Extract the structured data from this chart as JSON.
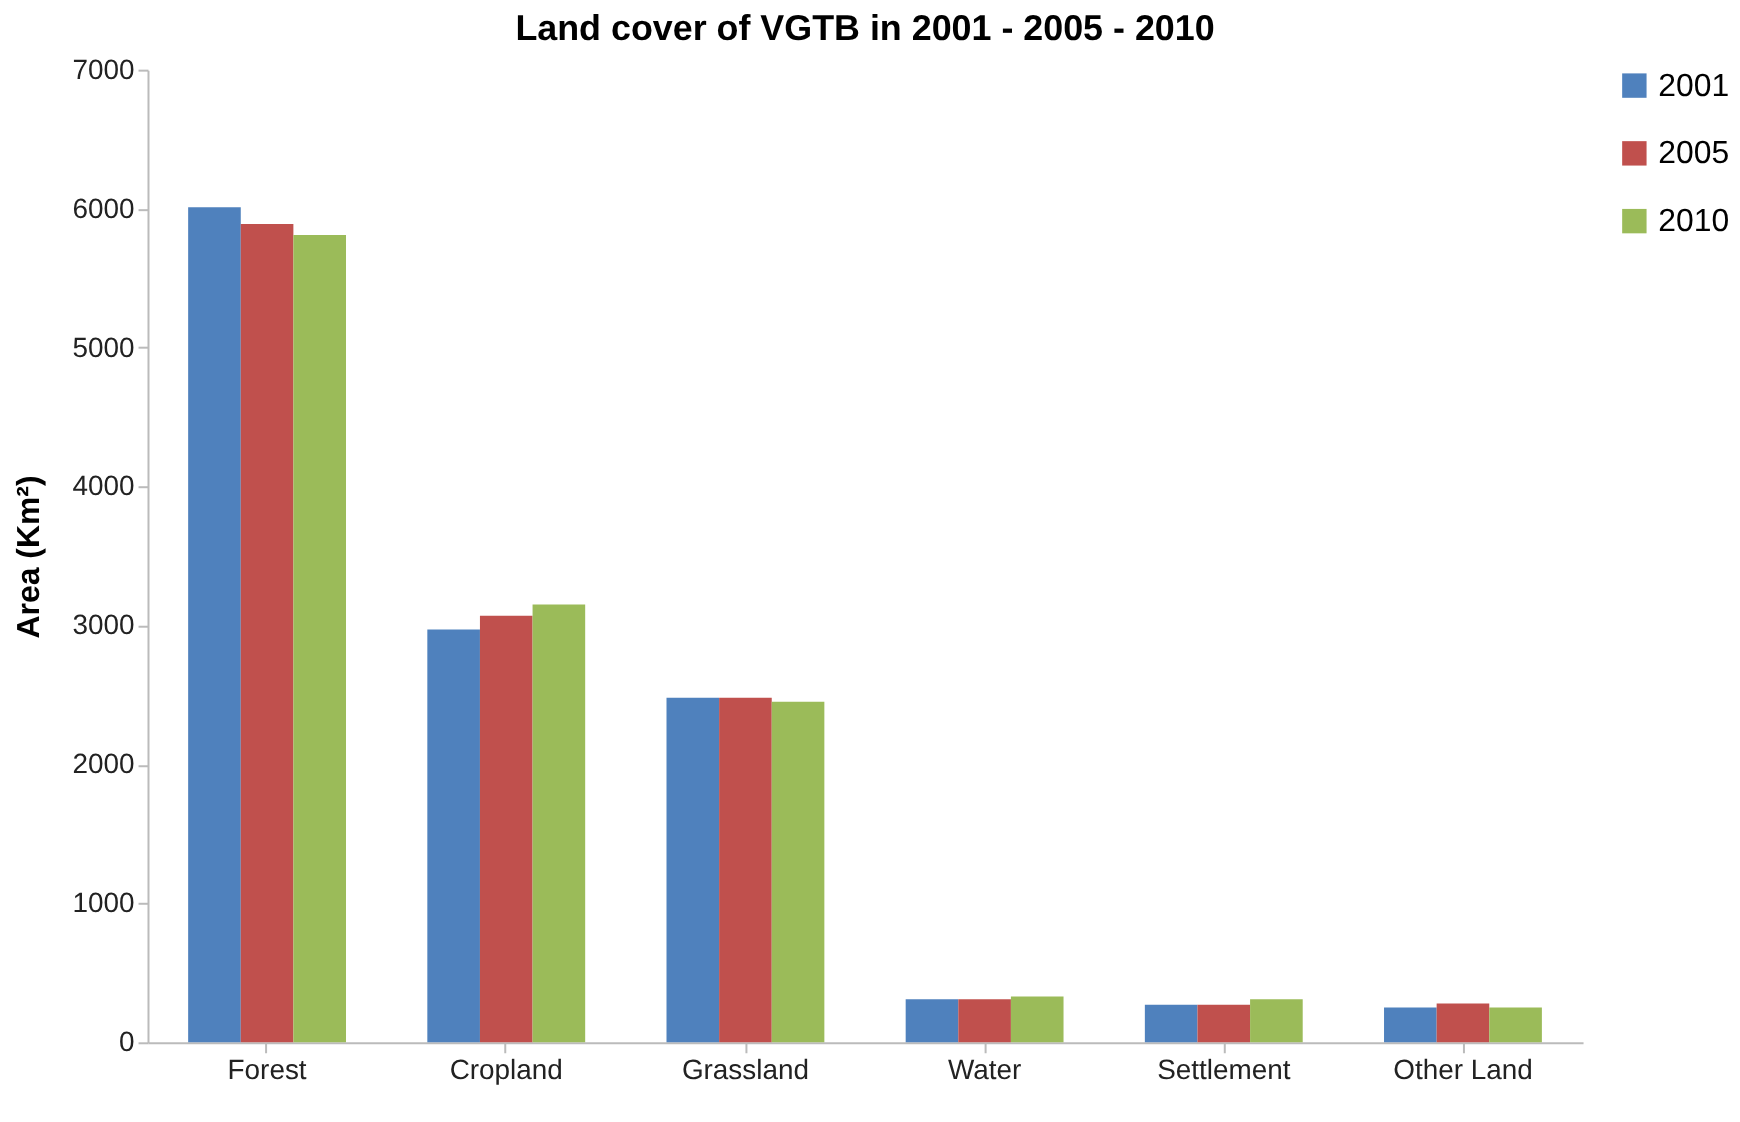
{
  "chart_data": {
    "type": "bar",
    "title": "Land cover of VGTB in 2001 - 2005 - 2010",
    "ylabel": "Area (Km²)",
    "categories": [
      "Forest",
      "Cropland",
      "Grassland",
      "Water",
      "Settlement",
      "Other Land"
    ],
    "series": [
      {
        "name": "2001",
        "color": "#4f81bd",
        "values": [
          6010,
          2970,
          2480,
          310,
          270,
          250
        ]
      },
      {
        "name": "2005",
        "color": "#c0504d",
        "values": [
          5890,
          3070,
          2480,
          310,
          270,
          280
        ]
      },
      {
        "name": "2010",
        "color": "#9bbb59",
        "values": [
          5810,
          3150,
          2450,
          330,
          310,
          250
        ]
      }
    ],
    "ylim": [
      0,
      7000
    ],
    "yticks": [
      0,
      1000,
      2000,
      3000,
      4000,
      5000,
      6000,
      7000
    ],
    "grid": false,
    "legend": "right"
  }
}
